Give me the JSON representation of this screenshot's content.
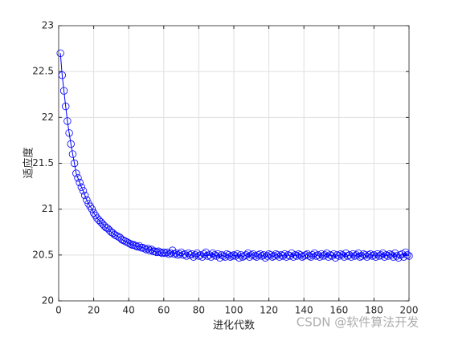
{
  "chart_data": {
    "type": "line",
    "xlabel": "进化代数",
    "ylabel": "适应度",
    "watermark": "CSDN @软件算法开发",
    "x": [
      1,
      2,
      3,
      4,
      5,
      6,
      7,
      8,
      9,
      10,
      11,
      12,
      13,
      14,
      15,
      16,
      17,
      18,
      19,
      20,
      21,
      22,
      23,
      24,
      25,
      26,
      27,
      28,
      29,
      30,
      31,
      32,
      33,
      34,
      35,
      36,
      37,
      38,
      39,
      40,
      41,
      42,
      43,
      44,
      45,
      46,
      47,
      48,
      49,
      50,
      51,
      52,
      53,
      54,
      55,
      56,
      57,
      58,
      59,
      60,
      61,
      62,
      63,
      64,
      65,
      66,
      67,
      68,
      69,
      70,
      71,
      72,
      73,
      74,
      75,
      76,
      77,
      78,
      79,
      80,
      81,
      82,
      83,
      84,
      85,
      86,
      87,
      88,
      89,
      90,
      91,
      92,
      93,
      94,
      95,
      96,
      97,
      98,
      99,
      100,
      101,
      102,
      103,
      104,
      105,
      106,
      107,
      108,
      109,
      110,
      111,
      112,
      113,
      114,
      115,
      116,
      117,
      118,
      119,
      120,
      121,
      122,
      123,
      124,
      125,
      126,
      127,
      128,
      129,
      130,
      131,
      132,
      133,
      134,
      135,
      136,
      137,
      138,
      139,
      140,
      141,
      142,
      143,
      144,
      145,
      146,
      147,
      148,
      149,
      150,
      151,
      152,
      153,
      154,
      155,
      156,
      157,
      158,
      159,
      160,
      161,
      162,
      163,
      164,
      165,
      166,
      167,
      168,
      169,
      170,
      171,
      172,
      173,
      174,
      175,
      176,
      177,
      178,
      179,
      180,
      181,
      182,
      183,
      184,
      185,
      186,
      187,
      188,
      189,
      190,
      191,
      192,
      193,
      194,
      195,
      196,
      197,
      198,
      199,
      200
    ],
    "series": [
      {
        "color": "#0000ff",
        "values": [
          22.7,
          22.46,
          22.29,
          22.12,
          21.96,
          21.83,
          21.71,
          21.6,
          21.5,
          21.39,
          21.34,
          21.29,
          21.24,
          21.2,
          21.15,
          21.1,
          21.06,
          21.03,
          21.0,
          20.96,
          20.93,
          20.9,
          20.88,
          20.86,
          20.84,
          20.82,
          20.8,
          20.79,
          20.77,
          20.75,
          20.74,
          20.72,
          20.71,
          20.7,
          20.69,
          20.67,
          20.66,
          20.65,
          20.64,
          20.63,
          20.62,
          20.61,
          20.61,
          20.6,
          20.59,
          20.6,
          20.58,
          20.58,
          20.57,
          20.56,
          20.57,
          20.55,
          20.56,
          20.54,
          20.54,
          20.53,
          20.54,
          20.53,
          20.52,
          20.53,
          20.52,
          20.53,
          20.51,
          20.52,
          20.55,
          20.51,
          20.52,
          20.5,
          20.51,
          20.53,
          20.5,
          20.51,
          20.49,
          20.52,
          20.5,
          20.51,
          20.48,
          20.5,
          20.52,
          20.49,
          20.5,
          20.48,
          20.51,
          20.53,
          20.49,
          20.5,
          20.48,
          20.52,
          20.5,
          20.49,
          20.51,
          20.47,
          20.5,
          20.49,
          20.48,
          20.51,
          20.5,
          20.48,
          20.49,
          20.5,
          20.49,
          20.51,
          20.47,
          20.5,
          20.48,
          20.49,
          20.5,
          20.52,
          20.48,
          20.5,
          20.51,
          20.49,
          20.48,
          20.5,
          20.51,
          20.49,
          20.5,
          20.47,
          20.49,
          20.51,
          20.5,
          20.48,
          20.49,
          20.51,
          20.5,
          20.48,
          20.5,
          20.49,
          20.51,
          20.48,
          20.5,
          20.49,
          20.52,
          20.48,
          20.5,
          20.49,
          20.51,
          20.5,
          20.48,
          20.49,
          20.5,
          20.51,
          20.49,
          20.48,
          20.5,
          20.52,
          20.49,
          20.5,
          20.48,
          20.51,
          20.49,
          20.5,
          20.52,
          20.48,
          20.5,
          20.49,
          20.51,
          20.47,
          20.5,
          20.49,
          20.51,
          20.5,
          20.48,
          20.52,
          20.49,
          20.5,
          20.48,
          20.51,
          20.49,
          20.5,
          20.52,
          20.48,
          20.49,
          20.51,
          20.5,
          20.48,
          20.5,
          20.51,
          20.49,
          20.5,
          20.48,
          20.51,
          20.49,
          20.5,
          20.52,
          20.48,
          20.5,
          20.49,
          20.51,
          20.5,
          20.48,
          20.52,
          20.49,
          20.47,
          20.5,
          20.51,
          20.48,
          20.53,
          20.5,
          20.49
        ]
      }
    ],
    "xlim": [
      0,
      200
    ],
    "xticks": [
      0,
      20,
      40,
      60,
      80,
      100,
      120,
      140,
      160,
      180,
      200
    ],
    "ylim": [
      20,
      23
    ],
    "yticks": [
      20,
      20.5,
      21,
      21.5,
      22,
      22.5,
      23
    ],
    "grid": true
  }
}
